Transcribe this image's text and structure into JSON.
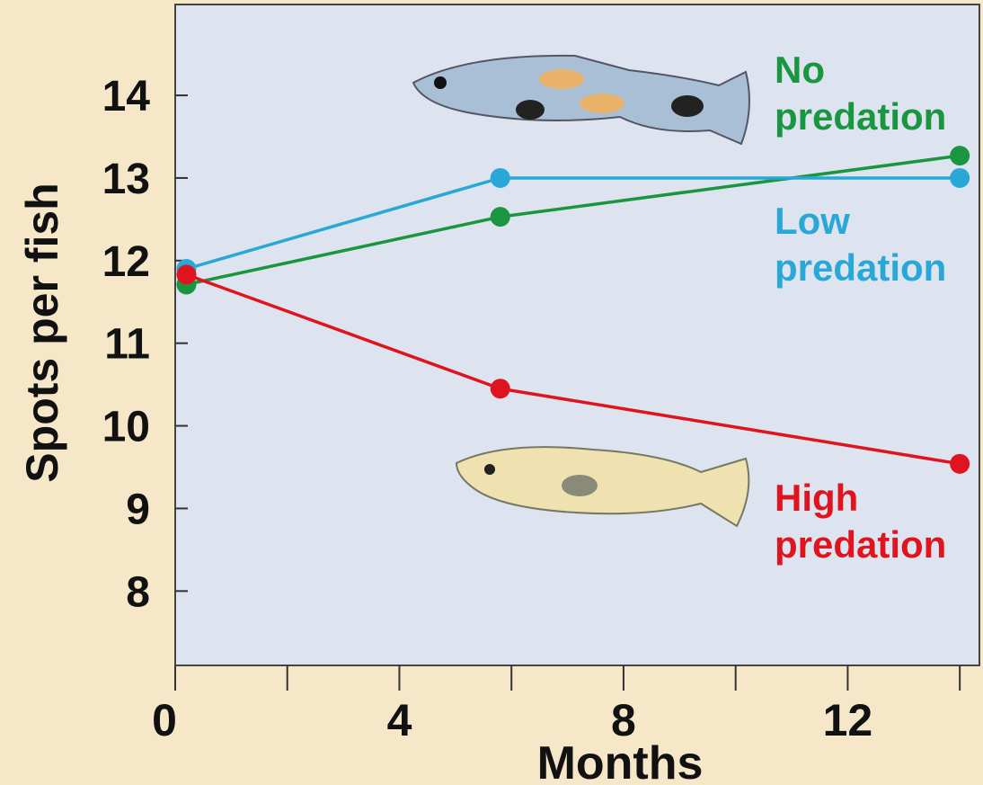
{
  "chart_data": {
    "type": "line",
    "xlabel": "Months",
    "ylabel": "Spots per fish",
    "xlim": [
      0,
      14.35
    ],
    "xticks": [
      0,
      4,
      8,
      12
    ],
    "xminor_ticks": [
      2,
      6,
      10,
      14
    ],
    "ylim": [
      7.1,
      15.1
    ],
    "yticks": [
      8,
      9,
      10,
      11,
      12,
      13,
      14
    ],
    "series": [
      {
        "name": "No predation",
        "color": "#1a9641",
        "x": [
          0.2,
          5.8,
          14
        ],
        "values": [
          11.71,
          12.53,
          13.27
        ]
      },
      {
        "name": "Low predation",
        "color": "#29a8d8",
        "x": [
          0.2,
          5.8,
          14
        ],
        "values": [
          11.9,
          13.0,
          13.0
        ]
      },
      {
        "name": "High predation",
        "color": "#e0141e",
        "x": [
          0.2,
          5.8,
          14
        ],
        "values": [
          11.83,
          10.45,
          9.54
        ]
      }
    ]
  }
}
